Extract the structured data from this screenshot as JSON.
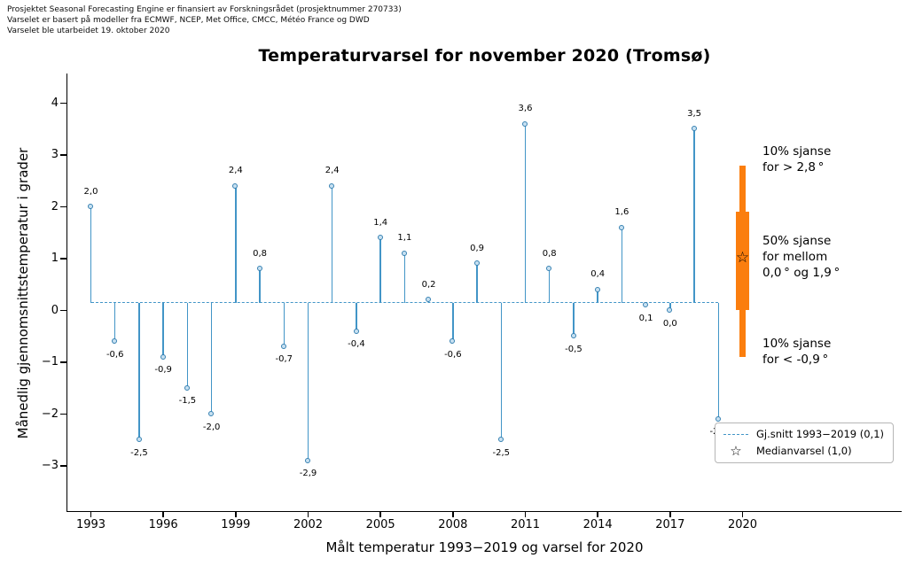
{
  "header": {
    "line1": "Prosjektet Seasonal Forecasting Engine er finansiert av Forskningsrådet (prosjektnummer 270733)",
    "line2": "Varselet er basert på modeller fra ECMWF, NCEP, Met Office, CMCC, Météo France og DWD",
    "line3": "Varselet ble utarbeidet 19. oktober 2020"
  },
  "chart_data": {
    "type": "stem",
    "title": "Temperaturvarsel for november 2020 (Tromsø)",
    "xlabel": "Målt temperatur 1993−2019 og varsel for 2020",
    "ylabel": "Månedlig gjennomsnittstemperatur i grader",
    "years": [
      1993,
      1994,
      1995,
      1996,
      1997,
      1998,
      1999,
      2000,
      2001,
      2002,
      2003,
      2004,
      2005,
      2006,
      2007,
      2008,
      2009,
      2010,
      2011,
      2012,
      2013,
      2014,
      2015,
      2016,
      2017,
      2018,
      2019
    ],
    "values": [
      2.0,
      -0.6,
      -2.5,
      -0.9,
      -1.5,
      -2.0,
      2.4,
      0.8,
      -0.7,
      -2.9,
      2.4,
      -0.4,
      1.4,
      1.1,
      0.2,
      -0.6,
      0.9,
      -2.5,
      3.6,
      0.8,
      -0.5,
      0.4,
      1.6,
      0.1,
      0.0,
      3.5,
      -2.1
    ],
    "point_labels": [
      "2,0",
      "-0,6",
      "-2,5",
      "-0,9",
      "-1,5",
      "-2,0",
      "2,4",
      "0,8",
      "-0,7",
      "-2,9",
      "2,4",
      "-0,4",
      "1,4",
      "1,1",
      "0,2",
      "-0,6",
      "0,9",
      "-2,5",
      "3,6",
      "0,8",
      "-0,5",
      "0,4",
      "1,6",
      "0,1",
      "0,0",
      "3,5",
      "-2,1"
    ],
    "mean_value": 0.15,
    "mean_label": "0,1",
    "x_ticks": [
      1993,
      1996,
      1999,
      2002,
      2005,
      2008,
      2011,
      2014,
      2017,
      2020
    ],
    "y_ticks": [
      4,
      3,
      2,
      1,
      0,
      -1,
      -2,
      -3
    ],
    "y_tick_labels": [
      "4",
      "3",
      "2",
      "1",
      "0",
      "−1",
      "−2",
      "−3"
    ],
    "ylim": [
      -3.85,
      4.55
    ],
    "grid": false,
    "forecast": {
      "year": 2020,
      "median": 1.0,
      "p50_low": 0.0,
      "p50_high": 1.9,
      "p10_low": -0.9,
      "p10_high": 2.8
    },
    "annotations": [
      {
        "lines": [
          "10% sjanse",
          "for > 2,8 °"
        ]
      },
      {
        "lines": [
          "50% sjanse",
          "for mellom",
          "0,0 ° og 1,9 °"
        ]
      },
      {
        "lines": [
          "10% sjanse",
          "for < -0,9 °"
        ]
      }
    ],
    "legend": [
      {
        "marker": "dashed-line",
        "label": "Gj.snitt 1993−2019 (0,1)"
      },
      {
        "marker": "star",
        "label": "Medianvarsel (1,0)"
      }
    ],
    "colors": {
      "stem": "#4295c7",
      "stem_edge": "#3580b1",
      "marker_fill": "#c8e1f2",
      "forecast_orange": "#fb7e0e",
      "axis": "#000000"
    }
  }
}
